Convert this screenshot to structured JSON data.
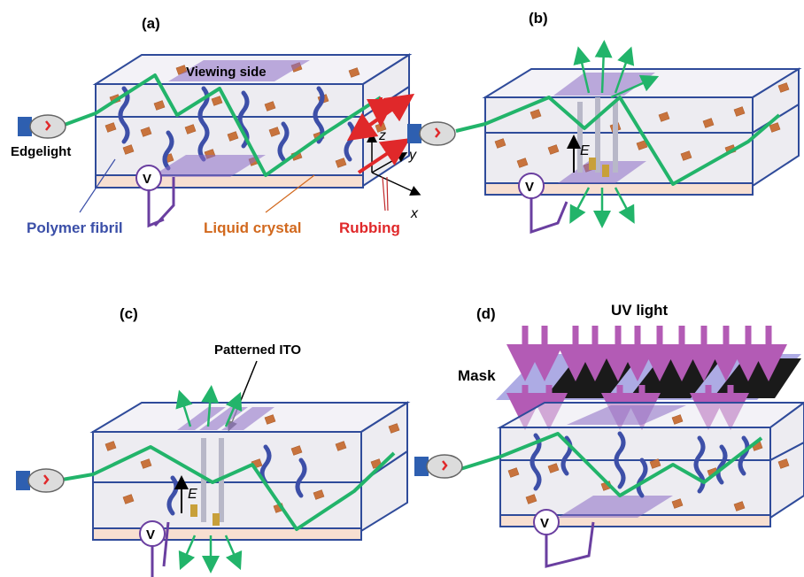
{
  "panels": {
    "a": {
      "label": "(a)",
      "viewing_side": "Viewing side",
      "edgelight": "Edgelight",
      "voltage": "V",
      "polymer_fibril": "Polymer fibril",
      "liquid_crystal": "Liquid crystal",
      "rubbing": "Rubbing",
      "axis_x": "x",
      "axis_y": "y",
      "axis_z": "z"
    },
    "b": {
      "label": "(b)",
      "voltage": "V",
      "field": "E"
    },
    "c": {
      "label": "(c)",
      "patterned_ito": "Patterned ITO",
      "voltage": "V",
      "field": "E"
    },
    "d": {
      "label": "(d)",
      "uv_light": "UV light",
      "mask": "Mask",
      "voltage": "V"
    }
  },
  "colors": {
    "beam": "#22b46a",
    "fibril": "#3d4fa8",
    "liquid_crystal": "#c8733d",
    "electrode": "#8a6cc4",
    "rubbing": "#e0282a",
    "uv": "#b35bb5",
    "mask_block": "#1a1a1a"
  }
}
